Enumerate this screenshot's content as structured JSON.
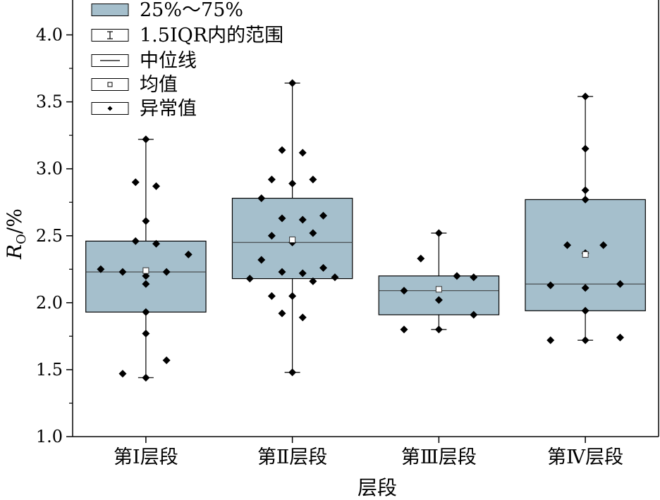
{
  "chart_data": {
    "type": "box",
    "xlabel": "层段",
    "ylabel_main": "R",
    "ylabel_sub": "O",
    "ylabel_unit": "/%",
    "ylim": [
      1.0,
      4.25
    ],
    "yticks": [
      "1.0",
      "1.5",
      "2.0",
      "2.5",
      "3.0",
      "3.5",
      "4.0"
    ],
    "categories": [
      "第Ⅰ层段",
      "第Ⅱ层段",
      "第Ⅲ层段",
      "第Ⅳ层段"
    ],
    "box_color": "#a5bfcc",
    "legend": {
      "position": "top-left",
      "items": [
        "25%～75%",
        "1.5IQR内的范围",
        "中位线",
        "均值",
        "异常值"
      ]
    },
    "boxes": [
      {
        "q1": 1.93,
        "median": 2.23,
        "q3": 2.46,
        "whisker_low": 1.44,
        "whisker_high": 3.22,
        "mean": 2.24,
        "points": [
          [
            -0.35,
            2.25
          ],
          [
            -0.18,
            2.23
          ],
          [
            -0.08,
            2.9
          ],
          [
            0.0,
            2.61
          ],
          [
            0.0,
            2.2
          ],
          [
            0.0,
            2.14
          ],
          [
            0.0,
            1.93
          ],
          [
            0.0,
            1.77
          ],
          [
            0.0,
            1.44
          ],
          [
            0.0,
            3.22
          ],
          [
            -0.08,
            2.46
          ],
          [
            0.08,
            2.44
          ],
          [
            0.08,
            2.87
          ],
          [
            0.16,
            2.23
          ],
          [
            0.33,
            2.36
          ],
          [
            0.16,
            1.57
          ],
          [
            -0.18,
            1.47
          ]
        ]
      },
      {
        "q1": 2.18,
        "median": 2.45,
        "q3": 2.78,
        "whisker_low": 1.48,
        "whisker_high": 3.64,
        "mean": 2.47,
        "points": [
          [
            0.0,
            3.64
          ],
          [
            -0.08,
            3.14
          ],
          [
            0.08,
            3.12
          ],
          [
            -0.16,
            2.92
          ],
          [
            0.16,
            2.92
          ],
          [
            0.0,
            2.89
          ],
          [
            -0.24,
            2.78
          ],
          [
            0.24,
            2.65
          ],
          [
            -0.08,
            2.63
          ],
          [
            0.08,
            2.62
          ],
          [
            -0.16,
            2.5
          ],
          [
            0.16,
            2.52
          ],
          [
            0.0,
            2.45
          ],
          [
            -0.24,
            2.32
          ],
          [
            -0.08,
            2.23
          ],
          [
            0.08,
            2.22
          ],
          [
            0.24,
            2.26
          ],
          [
            -0.33,
            2.18
          ],
          [
            0.16,
            2.16
          ],
          [
            0.33,
            2.19
          ],
          [
            -0.16,
            2.05
          ],
          [
            0.0,
            2.05
          ],
          [
            -0.08,
            1.92
          ],
          [
            0.08,
            1.89
          ],
          [
            0.0,
            1.48
          ]
        ]
      },
      {
        "q1": 1.91,
        "median": 2.09,
        "q3": 2.2,
        "whisker_low": 1.8,
        "whisker_high": 2.52,
        "mean": 2.1,
        "points": [
          [
            0.0,
            2.52
          ],
          [
            -0.14,
            2.33
          ],
          [
            0.14,
            2.2
          ],
          [
            0.27,
            2.19
          ],
          [
            -0.27,
            2.09
          ],
          [
            0.0,
            2.02
          ],
          [
            0.27,
            1.91
          ],
          [
            -0.27,
            1.8
          ],
          [
            0.0,
            1.8
          ]
        ]
      },
      {
        "q1": 1.94,
        "median": 2.14,
        "q3": 2.77,
        "whisker_low": 1.72,
        "whisker_high": 3.54,
        "mean": 2.36,
        "points": [
          [
            0.0,
            3.54
          ],
          [
            0.0,
            3.15
          ],
          [
            0.0,
            2.84
          ],
          [
            0.0,
            2.77
          ],
          [
            -0.14,
            2.43
          ],
          [
            0.14,
            2.43
          ],
          [
            0.0,
            2.37
          ],
          [
            -0.27,
            2.13
          ],
          [
            0.0,
            2.11
          ],
          [
            0.27,
            2.14
          ],
          [
            0.0,
            1.94
          ],
          [
            -0.27,
            1.72
          ],
          [
            0.0,
            1.72
          ],
          [
            0.27,
            1.74
          ]
        ]
      }
    ]
  }
}
